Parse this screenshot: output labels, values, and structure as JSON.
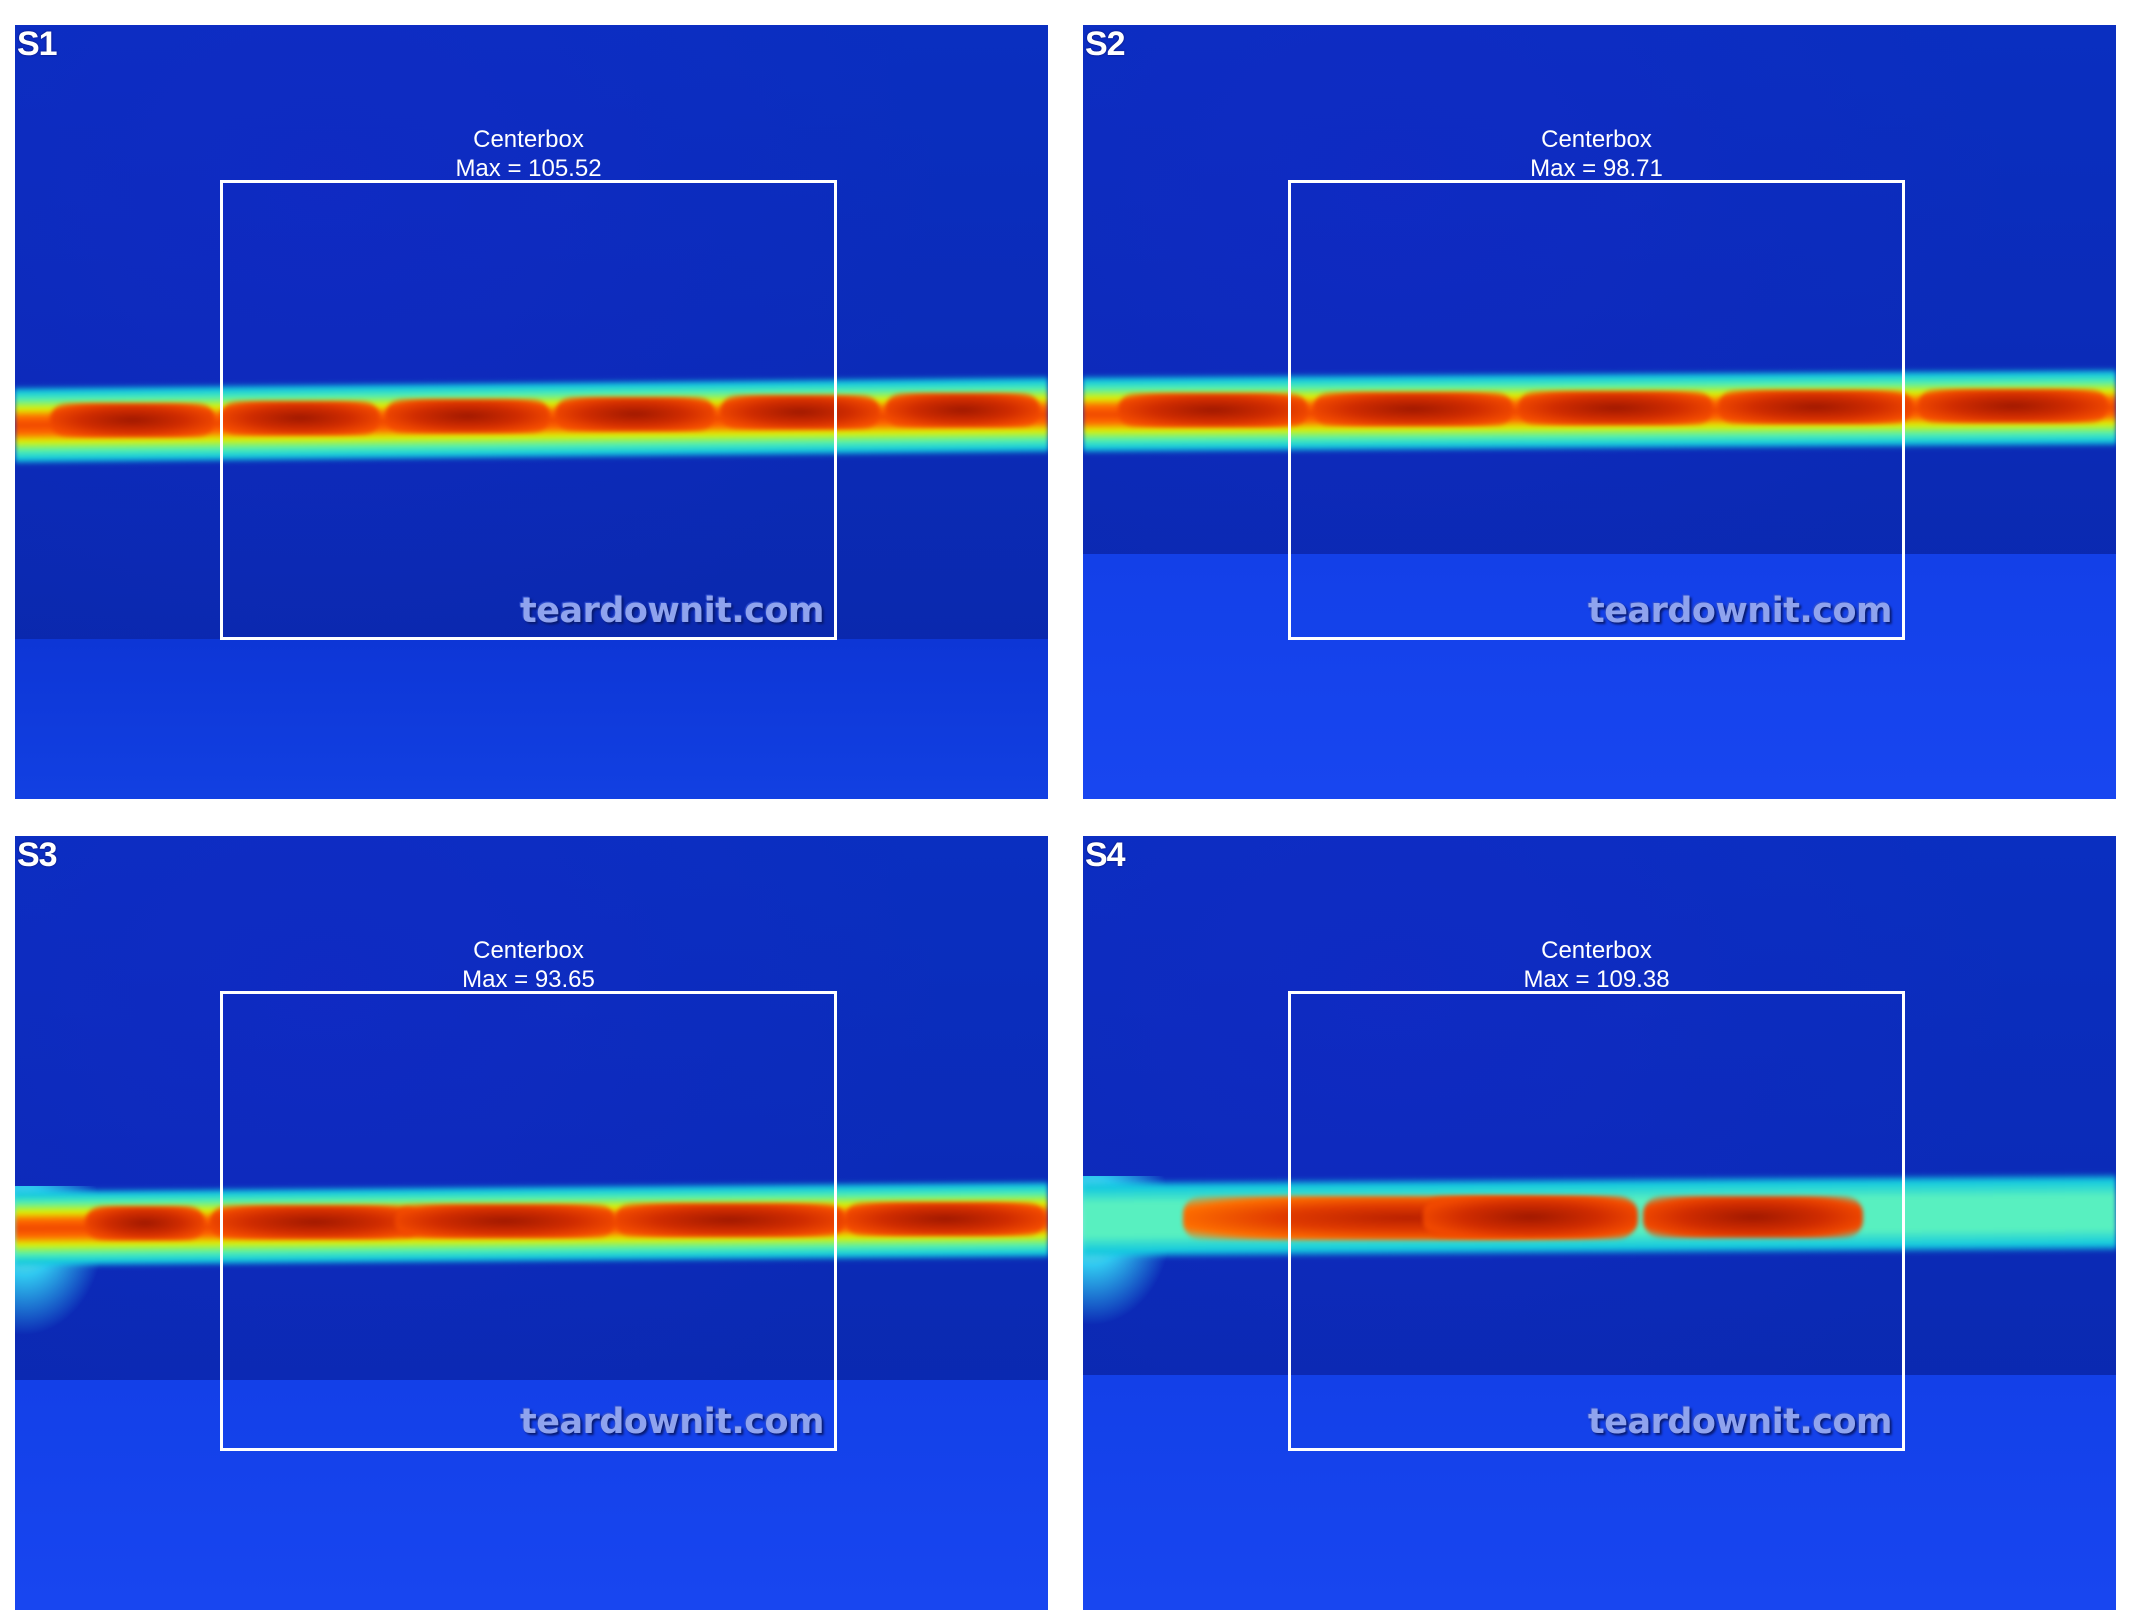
{
  "panels": [
    {
      "label": "S1",
      "box_title": "Centerbox",
      "max_text": "Max = 105.52",
      "watermark": "teardownit.com"
    },
    {
      "label": "S2",
      "box_title": "Centerbox",
      "max_text": "Max = 98.71",
      "watermark": "teardownit.com"
    },
    {
      "label": "S3",
      "box_title": "Centerbox",
      "max_text": "Max = 93.65",
      "watermark": "teardownit.com"
    },
    {
      "label": "S4",
      "box_title": "Centerbox",
      "max_text": "Max = 109.38",
      "watermark": "teardownit.com"
    }
  ],
  "colors": {
    "background": "#0a2fc0",
    "hot": "#d02c00",
    "warm": "#ff6a00",
    "cool": "#54f0b0",
    "box": "#ffffff"
  }
}
